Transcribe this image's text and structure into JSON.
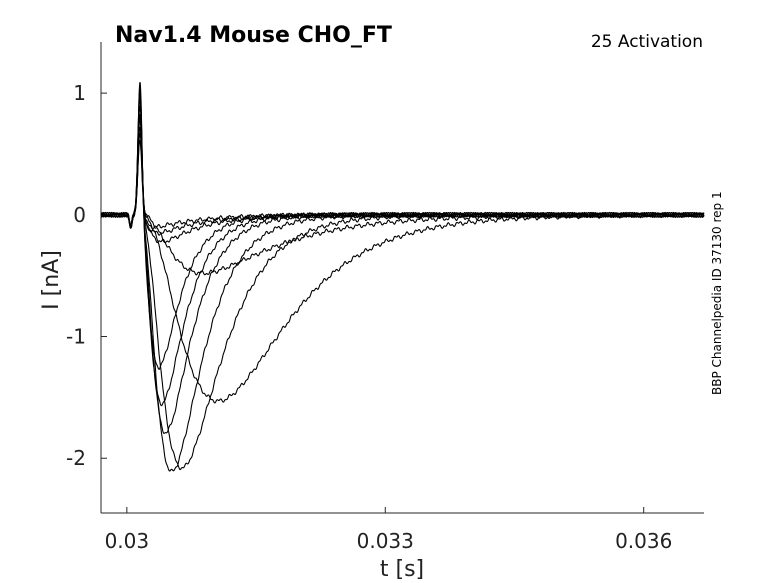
{
  "chart_data": {
    "type": "line",
    "title": "Nav1.4  Mouse  CHO_FT",
    "subtitle": "25  Activation",
    "side_note": "BBP Channelpedia ID 37130 rep 1",
    "xlabel": "t [s]",
    "ylabel": "I [nA]",
    "xlim": [
      0.0297,
      0.0367
    ],
    "ylim": [
      -2.45,
      1.42
    ],
    "x_ticks": [
      {
        "value": 0.03,
        "label": "0.03"
      },
      {
        "value": 0.033,
        "label": "0.033"
      },
      {
        "value": 0.036,
        "label": "0.036"
      }
    ],
    "y_ticks": [
      {
        "value": 1,
        "label": "1"
      },
      {
        "value": 0,
        "label": "0"
      },
      {
        "value": -1,
        "label": "-1"
      },
      {
        "value": -2,
        "label": "-2"
      }
    ],
    "grid": false,
    "legend": "none",
    "line_color": "#000000",
    "series": [
      {
        "peak_t": 0.03028,
        "peak_i": -0.1,
        "decay": 0.00055,
        "cap": 0.62
      },
      {
        "peak_t": 0.03032,
        "peak_i": -0.15,
        "decay": 0.0005,
        "cap": 0.68
      },
      {
        "peak_t": 0.03038,
        "peak_i": -0.22,
        "decay": 0.00045,
        "cap": 0.72
      },
      {
        "peak_t": 0.0309,
        "peak_i": -0.48,
        "decay": 0.0009,
        "cap": 0.78
      },
      {
        "peak_t": 0.03142,
        "peak_i": -1.53,
        "decay": 0.00075,
        "cap": 0.84
      },
      {
        "peak_t": 0.03078,
        "peak_i": -2.08,
        "decay": 0.00045,
        "cap": 0.9
      },
      {
        "peak_t": 0.03062,
        "peak_i": -2.11,
        "decay": 0.00035,
        "cap": 0.95
      },
      {
        "peak_t": 0.03052,
        "peak_i": -1.79,
        "decay": 0.0003,
        "cap": 1.0
      },
      {
        "peak_t": 0.03045,
        "peak_i": -1.55,
        "decay": 0.00028,
        "cap": 1.05
      },
      {
        "peak_t": 0.0304,
        "peak_i": -1.25,
        "decay": 0.00026,
        "cap": 1.09
      }
    ]
  }
}
